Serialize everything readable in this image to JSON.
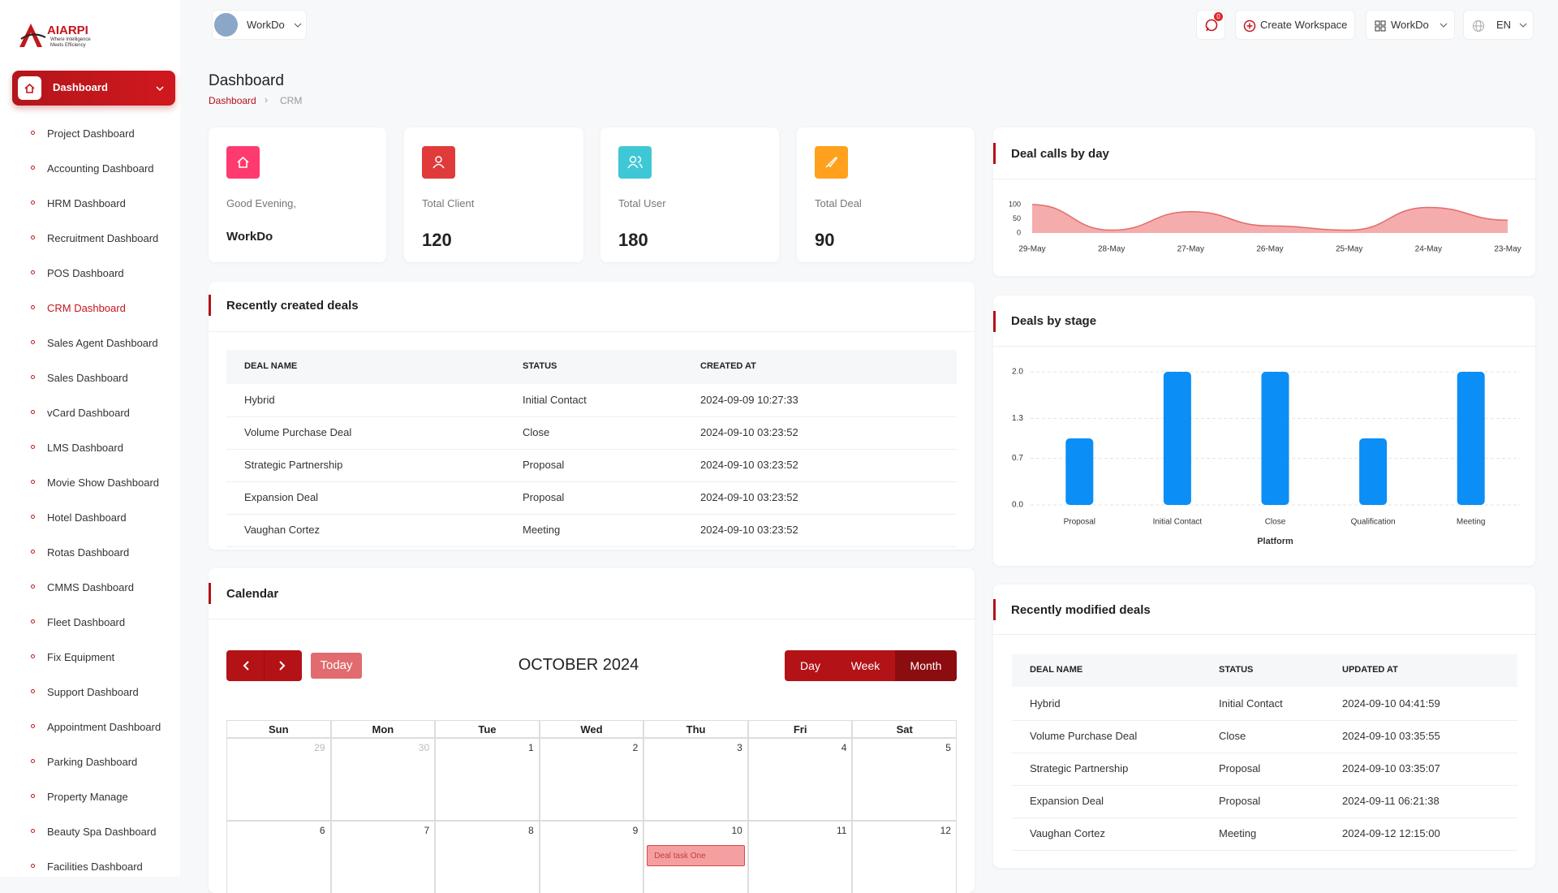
{
  "sidebar": {
    "brand": "AIARPI",
    "tagline": [
      "Where Intelligence",
      "Meets Efficiency"
    ],
    "active": "Dashboard",
    "items": [
      "Project Dashboard",
      "Accounting Dashboard",
      "HRM Dashboard",
      "Recruitment Dashboard",
      "POS Dashboard",
      "CRM Dashboard",
      "Sales Agent Dashboard",
      "Sales Dashboard",
      "vCard Dashboard",
      "LMS Dashboard",
      "Movie Show Dashboard",
      "Hotel Dashboard",
      "Rotas Dashboard",
      "CMMS Dashboard",
      "Fleet Dashboard",
      "Fix Equipment",
      "Support Dashboard",
      "Appointment Dashboard",
      "Parking Dashboard",
      "Property Manage",
      "Beauty Spa Dashboard",
      "Facilities Dashboard"
    ],
    "current": "CRM Dashboard"
  },
  "header": {
    "workspace": "WorkDo",
    "notifications": 0,
    "create": "Create Workspace",
    "workspace_menu": "WorkDo",
    "language": "EN"
  },
  "page": {
    "title": "Dashboard",
    "breadcrumb": [
      "Dashboard",
      "CRM"
    ]
  },
  "stats": [
    {
      "label": "Good Evening,",
      "value": "WorkDo"
    },
    {
      "label": "Total Client",
      "value": 120
    },
    {
      "label": "Total User",
      "value": 180
    },
    {
      "label": "Total Deal",
      "value": 90
    }
  ],
  "recent_deals": {
    "title": "Recently created deals",
    "columns": [
      "DEAL NAME",
      "STATUS",
      "CREATED AT"
    ],
    "rows": [
      [
        "Hybrid",
        "Initial Contact",
        "2024-09-09 10:27:33"
      ],
      [
        "Volume Purchase Deal",
        "Close",
        "2024-09-10 03:23:52"
      ],
      [
        "Strategic Partnership",
        "Proposal",
        "2024-09-10 03:23:52"
      ],
      [
        "Expansion Deal",
        "Proposal",
        "2024-09-10 03:23:52"
      ],
      [
        "Vaughan Cortez",
        "Meeting",
        "2024-09-10 03:23:52"
      ]
    ]
  },
  "calendar": {
    "title": "Calendar",
    "today": "Today",
    "views": [
      "Day",
      "Week",
      "Month"
    ],
    "month": "OCTOBER 2024",
    "weekdays": [
      "Sun",
      "Mon",
      "Tue",
      "Wed",
      "Thu",
      "Fri",
      "Sat"
    ],
    "weeks": [
      [
        29,
        30,
        1,
        2,
        3,
        4,
        5
      ],
      [
        6,
        7,
        8,
        9,
        10,
        11,
        12
      ]
    ],
    "event": "Deal task One"
  },
  "recent_modified": {
    "title": "Recently modified deals",
    "columns": [
      "DEAL NAME",
      "STATUS",
      "UPDATED AT"
    ],
    "rows": [
      [
        "Hybrid",
        "Initial Contact",
        "2024-09-10 04:41:59"
      ],
      [
        "Volume Purchase Deal",
        "Close",
        "2024-09-10 03:35:55"
      ],
      [
        "Strategic Partnership",
        "Proposal",
        "2024-09-10 03:35:07"
      ],
      [
        "Expansion Deal",
        "Proposal",
        "2024-09-11 06:21:38"
      ],
      [
        "Vaughan Cortez",
        "Meeting",
        "2024-09-12 12:15:00"
      ]
    ]
  },
  "chart_data": [
    {
      "type": "area",
      "title": "Deal calls by day",
      "categories": [
        "29-May",
        "28-May",
        "27-May",
        "26-May",
        "25-May",
        "24-May",
        "23-May"
      ],
      "values": [
        100,
        10,
        75,
        25,
        10,
        90,
        45
      ],
      "color": "#e46b6b",
      "ylim": [
        0,
        100
      ],
      "yticks": [
        0,
        50,
        100
      ]
    },
    {
      "type": "bar",
      "title": "Deals by stage",
      "xlabel": "Platform",
      "categories": [
        "Proposal",
        "Initial Contact",
        "Close",
        "Qualification",
        "Meeting"
      ],
      "values": [
        1,
        2,
        2,
        1,
        2
      ],
      "color": "#0b8ef5",
      "ylim": [
        0,
        2
      ],
      "yticks": [
        {
          "value": 0,
          "label": "0.0"
        },
        0.7,
        1.3,
        {
          "value": 2,
          "label": "2.0"
        }
      ],
      "grid": true
    }
  ]
}
